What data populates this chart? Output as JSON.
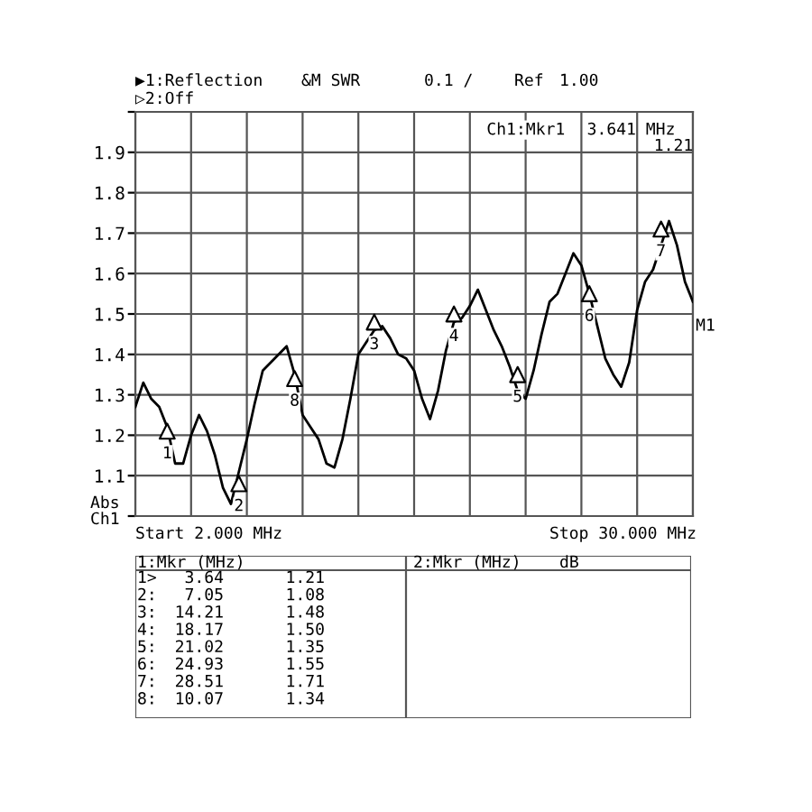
{
  "chart_data": {
    "type": "line",
    "categories": [
      null,
      null,
      null,
      null,
      null,
      null,
      null,
      null,
      null,
      null,
      null,
      null,
      null,
      null,
      null,
      null,
      null,
      null,
      null,
      null,
      null,
      null,
      null,
      null,
      null,
      null,
      null,
      null,
      null,
      null,
      null,
      null,
      null,
      null,
      null,
      null,
      null,
      null,
      null,
      null,
      null,
      null,
      null,
      null,
      null,
      null,
      null,
      null,
      null,
      null,
      null,
      null,
      null,
      null,
      null,
      null,
      null,
      null,
      null,
      null,
      null,
      null,
      null,
      null,
      null,
      null,
      null,
      null,
      null,
      null,
      null
    ],
    "series": [
      {
        "color": "#000000",
        "values": [
          1.27,
          1.33,
          1.29,
          1.27,
          1.22,
          1.13,
          1.13,
          1.2,
          1.25,
          1.21,
          1.15,
          1.07,
          1.03,
          1.11,
          1.19,
          1.28,
          1.36,
          1.38,
          1.4,
          1.42,
          1.35,
          1.25,
          1.22,
          1.19,
          1.13,
          1.12,
          1.19,
          1.29,
          1.4,
          1.43,
          1.46,
          1.47,
          1.44,
          1.4,
          1.39,
          1.36,
          1.29,
          1.24,
          1.31,
          1.41,
          1.48,
          1.49,
          1.52,
          1.56,
          1.51,
          1.46,
          1.42,
          1.37,
          1.31,
          1.29,
          1.36,
          1.45,
          1.53,
          1.55,
          1.6,
          1.65,
          1.62,
          1.55,
          1.47,
          1.39,
          1.35,
          1.32,
          1.38,
          1.51,
          1.58,
          1.61,
          1.67,
          1.73,
          1.67,
          1.58,
          1.53
        ]
      },
      {
        "type": "scatter",
        "color": "#000000",
        "marker": "triangle",
        "values": [
          null,
          null,
          null,
          null,
          1.21,
          null,
          null,
          null,
          null,
          null,
          null,
          null,
          null,
          1.08,
          null,
          null,
          null,
          null,
          null,
          null,
          1.34,
          null,
          null,
          null,
          null,
          null,
          null,
          null,
          null,
          null,
          1.48,
          null,
          null,
          null,
          null,
          null,
          null,
          null,
          null,
          null,
          1.5,
          null,
          null,
          null,
          null,
          null,
          null,
          null,
          1.35,
          null,
          null,
          null,
          null,
          null,
          null,
          null,
          null,
          1.55,
          null,
          null,
          null,
          null,
          null,
          null,
          null,
          null,
          1.71,
          null,
          null,
          null,
          null
        ]
      }
    ],
    "ylim": [
      1.0,
      2.0
    ],
    "yticks": [
      {
        "value": 1.0,
        "label": null
      },
      1.1,
      1.2,
      1.3,
      1.4,
      1.5,
      1.6,
      1.7,
      1.8,
      1.9,
      {
        "value": 2.0,
        "label": null
      }
    ],
    "tick_labels": "y",
    "grid": true,
    "line_style": "solid",
    "annotations": [
      "▶1:Reflection",
      "&M SWR",
      "0.1 /",
      "Ref",
      "1.00",
      "▷2:Off",
      "Ch1:Mkr1",
      "3.641 MHz",
      "1.21",
      "Abs",
      "Ch1",
      "Start 2.000 MHz",
      "Stop 30.000 MHz",
      "1:Mkr (MHz)",
      "2:Mkr (MHz)",
      "dB",
      "1>",
      "3.64",
      "1.21",
      "2:",
      "7.05",
      "1.08",
      "3:",
      "14.21",
      "1.48",
      "4:",
      "18.17",
      "1.50",
      "5:",
      "21.02",
      "1.35",
      "6:",
      "24.93",
      "1.55",
      "7:",
      "28.51",
      "1.71",
      "8:",
      "10.07",
      "1.34",
      "M1",
      "1",
      "2",
      "8",
      "3",
      "4",
      "5",
      "6",
      "7"
    ]
  }
}
